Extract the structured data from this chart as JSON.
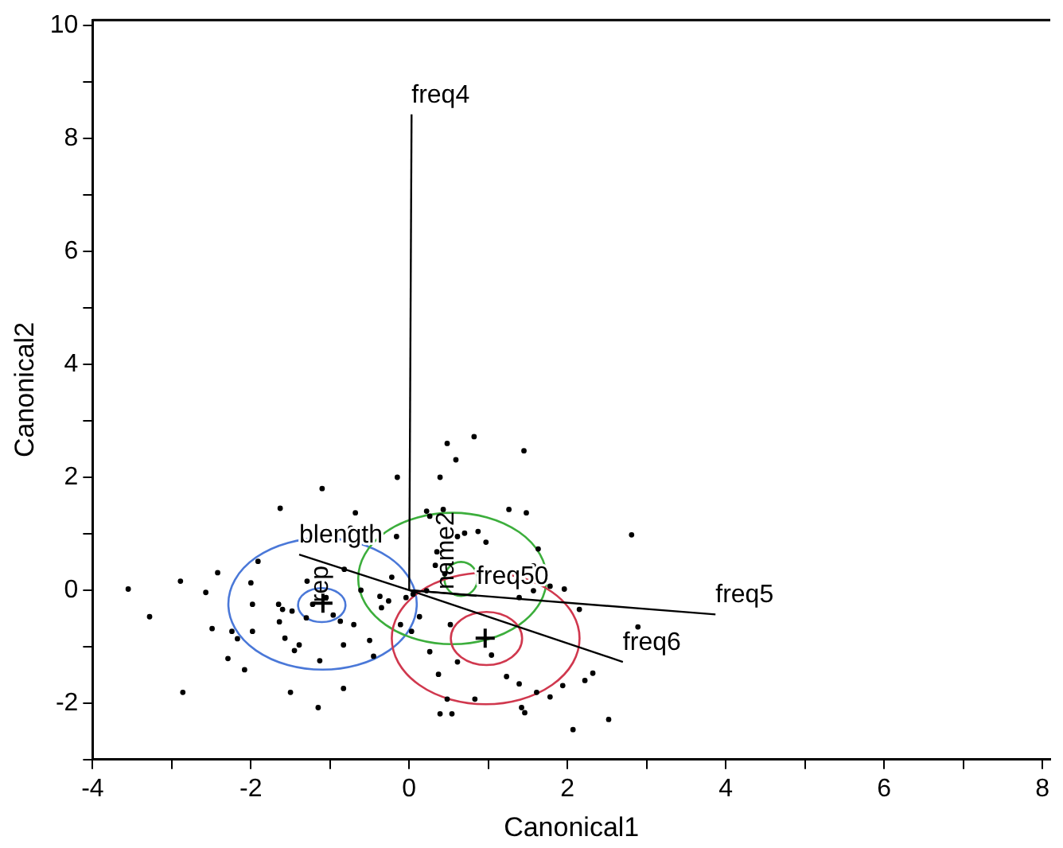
{
  "chart_data": {
    "type": "scatter",
    "xlabel": "Canonical1",
    "ylabel": "Canonical2",
    "xlim": [
      -4,
      8.1
    ],
    "ylim": [
      -3,
      10.1
    ],
    "xticks": [
      -4,
      {
        "value": -3,
        "label": null
      },
      -2,
      {
        "value": -1,
        "label": null
      },
      0,
      {
        "value": 1,
        "label": null
      },
      2,
      {
        "value": 3,
        "label": null
      },
      4,
      {
        "value": 5,
        "label": null
      },
      6,
      {
        "value": 7,
        "label": null
      },
      8
    ],
    "yticks": [
      {
        "value": -3,
        "label": null
      },
      -2,
      {
        "value": -1,
        "label": null
      },
      0,
      {
        "value": 1,
        "label": null
      },
      2,
      {
        "value": 3,
        "label": null
      },
      4,
      {
        "value": 5,
        "label": null
      },
      6,
      {
        "value": 7,
        "label": null
      },
      8,
      {
        "value": 9,
        "label": null
      },
      10
    ],
    "grid": false,
    "legend": false,
    "series": [
      {
        "type": "scatter",
        "marker": "circle",
        "color": "#000000",
        "x": [
          -3.55,
          -3.28,
          -2.89,
          -2.86,
          -2.57,
          -2.42,
          -2.49,
          -2.24,
          -2.29,
          -2.08,
          -2.17,
          -2.0,
          -1.98,
          -1.98,
          -1.91,
          -1.63,
          -1.65,
          -1.64,
          -1.6,
          -1.57,
          -1.5,
          -1.48,
          -1.45,
          -1.39,
          -1.29,
          -1.3,
          -1.22,
          -1.13,
          -1.15,
          -1.1,
          -1.05,
          -0.96,
          -0.83,
          -0.83,
          -0.82,
          -0.87,
          -0.68,
          -0.74,
          -0.7,
          -0.61,
          -0.5,
          -0.45,
          -0.37,
          -0.35,
          -0.26,
          -0.22,
          -0.15,
          -0.16,
          -0.11,
          -0.04,
          0.03,
          0.05,
          0.13,
          0.22,
          0.26,
          0.35,
          0.39,
          0.48,
          0.43,
          0.59,
          0.61,
          0.7,
          0.82,
          0.87,
          0.97,
          1.26,
          1.45,
          1.48,
          1.57,
          1.63,
          1.78,
          1.96,
          2.15,
          2.81,
          2.89,
          0.26,
          0.37,
          0.39,
          0.48,
          0.54,
          0.83,
          1.04,
          1.23,
          1.39,
          1.42,
          1.46,
          1.61,
          1.78,
          1.94,
          2.07,
          2.22,
          2.32,
          2.52,
          0.61,
          0.52,
          1.39,
          1.57,
          0.22,
          0.33,
          0.45
        ],
        "values": [
          0.02,
          -0.47,
          0.16,
          -1.81,
          -0.04,
          0.31,
          -0.68,
          -0.73,
          -1.21,
          -1.41,
          -0.86,
          0.13,
          -0.25,
          -0.73,
          0.51,
          1.45,
          -0.25,
          -0.56,
          -0.34,
          -0.85,
          -1.81,
          -0.37,
          -1.07,
          -0.97,
          0.16,
          -0.49,
          -0.25,
          -1.25,
          -2.08,
          1.8,
          -0.13,
          -0.44,
          -1.74,
          -0.97,
          0.37,
          -0.55,
          1.37,
          1.1,
          -0.61,
          0,
          -0.89,
          -1.17,
          -0.11,
          -0.31,
          -0.19,
          0.23,
          2.0,
          0.95,
          -0.61,
          -0.13,
          -0.73,
          -0.07,
          -0.47,
          1.4,
          1.31,
          0.68,
          2.0,
          2.6,
          1.43,
          2.31,
          0.95,
          1.01,
          2.72,
          1.04,
          0.85,
          1.43,
          2.47,
          1.37,
          0.43,
          0.73,
          0.07,
          0.02,
          -0.34,
          0.98,
          -0.65,
          -1.09,
          -1.49,
          -2.19,
          -1.93,
          -2.19,
          -1.93,
          -1.15,
          -1.53,
          -1.66,
          -2.08,
          -2.17,
          -1.81,
          -1.89,
          -1.69,
          -2.47,
          -1.6,
          -1.47,
          -2.29,
          -1.27,
          -0.61,
          -0.13,
          -0.01,
          -0.01,
          0.44,
          0.29
        ]
      },
      {
        "type": "scatter",
        "marker": "cross",
        "color": "#000000",
        "x": [
          -1.09,
          0.96
        ],
        "values": [
          -0.23,
          -0.85
        ]
      },
      {
        "type": "line",
        "color": "#000000",
        "x": [
          0,
          0.03
        ],
        "values": [
          0,
          8.43
        ]
      },
      {
        "type": "line",
        "color": "#000000",
        "x": [
          0,
          3.87
        ],
        "values": [
          0,
          -0.43
        ]
      },
      {
        "type": "line",
        "color": "#000000",
        "x": [
          -1.39,
          0,
          2.7
        ],
        "values": [
          0.63,
          0,
          -1.27
        ]
      },
      {
        "type": "line",
        "color": "#000000",
        "x": [
          0,
          0.85
        ],
        "values": [
          0,
          -0.1
        ]
      }
    ],
    "annotations": [
      {
        "text": "freq4",
        "x": 0.03,
        "y": 8.43
      },
      {
        "text": "freq5",
        "x": 3.87,
        "y": -0.43
      },
      {
        "text": "freq6",
        "x": 2.7,
        "y": -1.27
      },
      {
        "text": "blength",
        "x": -1.39,
        "y": 0.63
      },
      {
        "text": "freq50",
        "x": 0.85,
        "y": -0.1
      },
      "rep",
      "name2"
    ]
  }
}
